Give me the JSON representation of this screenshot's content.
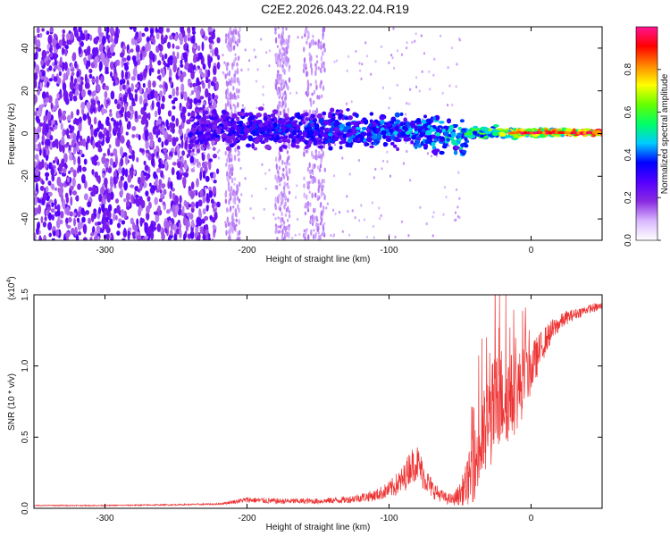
{
  "title": "C2E2.2026.043.22.04.R19",
  "chart_data": [
    {
      "type": "heatmap",
      "name": "spectrogram",
      "xlabel": "Height of straight line (km)",
      "ylabel": "Frequency (Hz)",
      "xlim": [
        -350,
        50
      ],
      "ylim": [
        -50,
        50
      ],
      "xticks": [
        -300,
        -200,
        -100,
        0
      ],
      "yticks": [
        -40,
        -20,
        0,
        20,
        40
      ],
      "xtick_labels": [
        "-300",
        "-200",
        "-100",
        "0"
      ],
      "ytick_labels": [
        "-40",
        "-20",
        "0",
        "20",
        "40"
      ],
      "colorbar": {
        "label": "Normalized spectral amplitude",
        "range": [
          0,
          1
        ],
        "ticks": [
          0.0,
          0.2,
          0.4,
          0.6,
          0.8
        ],
        "tick_labels": [
          "0.0",
          "0.2",
          "0.4",
          "0.6",
          "0.8"
        ],
        "colors": [
          "#ffffff",
          "#d9b8ff",
          "#8a2be2",
          "#5500ff",
          "#0000ff",
          "#00ccff",
          "#00ff66",
          "#66ff00",
          "#ffff00",
          "#ff8800",
          "#ff0000",
          "#ff1493"
        ]
      },
      "features": {
        "noise_region_km": [
          -350,
          -240
        ],
        "signal_band_center_hz": [
          0,
          0
        ],
        "signal_start_km": -240,
        "strong_signal_from_km": -45
      }
    },
    {
      "type": "line",
      "name": "snr",
      "xlabel": "Height of straight line (km)",
      "ylabel": "SNR (10 * v/v)",
      "scale_note_base": "(x10",
      "scale_note_exp": "4",
      "scale_note_close": ")",
      "xlim": [
        -350,
        50
      ],
      "ylim": [
        0,
        1.5
      ],
      "xticks": [
        -300,
        -200,
        -100,
        0
      ],
      "yticks": [
        0.0,
        0.5,
        1.0,
        1.5
      ],
      "xtick_labels": [
        "-300",
        "-200",
        "-100",
        "0"
      ],
      "ytick_labels": [
        "0.0",
        "0.5",
        "1.0",
        "1.5"
      ],
      "color": "#ee3333",
      "series": [
        {
          "name": "SNR",
          "x": [
            -350,
            -300,
            -250,
            -220,
            -200,
            -180,
            -150,
            -130,
            -110,
            -100,
            -90,
            -85,
            -80,
            -75,
            -70,
            -65,
            -60,
            -55,
            -50,
            -45,
            -40,
            -35,
            -30,
            -25,
            -20,
            -15,
            -10,
            -5,
            0,
            5,
            10,
            15,
            20,
            25,
            30,
            35,
            40,
            45,
            50
          ],
          "y": [
            0.02,
            0.02,
            0.025,
            0.03,
            0.06,
            0.05,
            0.05,
            0.06,
            0.09,
            0.13,
            0.2,
            0.3,
            0.32,
            0.22,
            0.14,
            0.1,
            0.07,
            0.06,
            0.1,
            0.18,
            0.3,
            0.45,
            0.6,
            0.72,
            0.8,
            0.78,
            0.82,
            0.9,
            0.98,
            1.08,
            1.18,
            1.25,
            1.3,
            1.34,
            1.36,
            1.38,
            1.4,
            1.41,
            1.42
          ],
          "envelope_amp": [
            0.004,
            0.004,
            0.005,
            0.006,
            0.02,
            0.02,
            0.02,
            0.025,
            0.04,
            0.06,
            0.1,
            0.12,
            0.13,
            0.1,
            0.07,
            0.05,
            0.04,
            0.04,
            0.08,
            0.16,
            0.25,
            0.32,
            0.36,
            0.38,
            0.36,
            0.32,
            0.28,
            0.24,
            0.18,
            0.14,
            0.1,
            0.08,
            0.06,
            0.05,
            0.04,
            0.035,
            0.03,
            0.03,
            0.03
          ]
        }
      ]
    }
  ]
}
